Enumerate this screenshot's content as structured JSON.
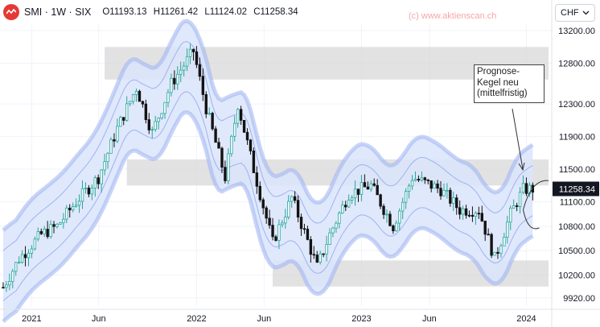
{
  "header": {
    "symbol": "SMI · 1W · SIX",
    "open": "O11193.13",
    "high": "H11261.42",
    "low": "L11124.02",
    "close": "C11258.34"
  },
  "copyright": "(c) www.aktienscan.ch",
  "currency_select": {
    "value": "CHF"
  },
  "annotation": {
    "lines": [
      "Prognose-",
      "Kegel neu",
      "(mittelfristig)"
    ]
  },
  "colors": {
    "up": "#26a69a",
    "down": "#131313",
    "band_fill": "#dbe4fb",
    "band_edge": "#9db3f0",
    "zone": "#d6d6d6",
    "last_price_bg": "#131722"
  },
  "chart_data": {
    "type": "candlestick",
    "title": "SMI · 1W · SIX",
    "x_tick_labels": [
      "2021",
      "Jun",
      "2022",
      "Jun",
      "2023",
      "Jun",
      "2024"
    ],
    "y_ticks": [
      9920,
      10200,
      10500,
      10800,
      11100,
      11500,
      11900,
      12300,
      12800,
      13200
    ],
    "y_tick_labels": [
      "9920.00",
      "10200.00",
      "10500.00",
      "10800.00",
      "11100.00",
      "11500.00",
      "11900.00",
      "12300.00",
      "12800.00",
      "13200.00"
    ],
    "ylim": [
      9820,
      13280
    ],
    "last_price": {
      "value": 11258.34,
      "label": "11258.34"
    },
    "price_path": [
      {
        "x": "2020-11-02",
        "y": 10050
      },
      {
        "x": "2020-12-07",
        "y": 10400
      },
      {
        "x": "2021-01-25",
        "y": 10700
      },
      {
        "x": "2021-03-01",
        "y": 10800
      },
      {
        "x": "2021-04-12",
        "y": 11100
      },
      {
        "x": "2021-05-31",
        "y": 11400
      },
      {
        "x": "2021-07-12",
        "y": 12000
      },
      {
        "x": "2021-08-23",
        "y": 12500
      },
      {
        "x": "2021-09-27",
        "y": 11950
      },
      {
        "x": "2021-11-08",
        "y": 12550
      },
      {
        "x": "2021-12-27",
        "y": 12950
      },
      {
        "x": "2022-01-24",
        "y": 12250
      },
      {
        "x": "2022-03-07",
        "y": 11400
      },
      {
        "x": "2022-04-04",
        "y": 12300
      },
      {
        "x": "2022-05-09",
        "y": 11500
      },
      {
        "x": "2022-06-20",
        "y": 10600
      },
      {
        "x": "2022-08-01",
        "y": 11150
      },
      {
        "x": "2022-09-26",
        "y": 10300
      },
      {
        "x": "2022-10-24",
        "y": 10700
      },
      {
        "x": "2022-12-05",
        "y": 11200
      },
      {
        "x": "2023-01-23",
        "y": 11300
      },
      {
        "x": "2023-03-13",
        "y": 10800
      },
      {
        "x": "2023-04-24",
        "y": 11400
      },
      {
        "x": "2023-06-26",
        "y": 11250
      },
      {
        "x": "2023-08-07",
        "y": 11000
      },
      {
        "x": "2023-09-18",
        "y": 11000
      },
      {
        "x": "2023-10-23",
        "y": 10400
      },
      {
        "x": "2023-11-27",
        "y": 10950
      },
      {
        "x": "2023-12-25",
        "y": 11250
      },
      {
        "x": "2024-01-15",
        "y": 11258
      }
    ],
    "zones": [
      {
        "y_low": 12600,
        "y_high": 13000,
        "x_start": "2021-06-14",
        "x_end": "2024-02-19"
      },
      {
        "y_low": 11300,
        "y_high": 11620,
        "x_start": "2021-08-02",
        "x_end": "2024-02-19"
      },
      {
        "y_low": 10060,
        "y_high": 10380,
        "x_start": "2022-06-20",
        "x_end": "2024-02-19"
      }
    ],
    "band_width": 560,
    "forecast_cone": {
      "start": 11000,
      "upper": 11380,
      "lower": 10780
    },
    "grid": true
  }
}
